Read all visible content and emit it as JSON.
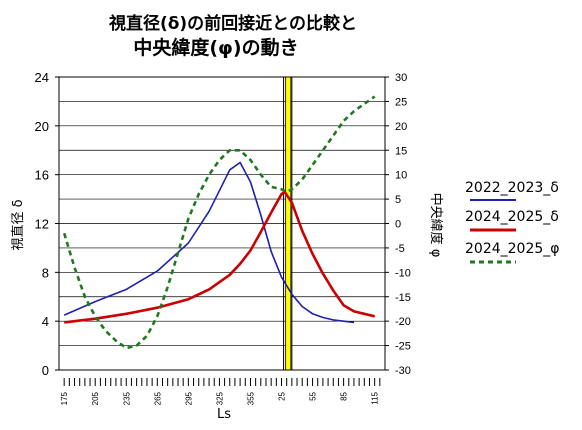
{
  "chart_data": {
    "type": "line",
    "title_line1": "視直径(δ)の前回接近との比較と",
    "title_line2": "中央緯度(φ)の動き",
    "xlabel": "Ls",
    "ylabel_left": "視直径 δ",
    "ylabel_right": "中央緯度 φ",
    "x_ticks": [
      "175",
      "205",
      "235",
      "265",
      "295",
      "325",
      "355",
      "25",
      "55",
      "85",
      "115"
    ],
    "x_unwrapped_range": [
      170,
      485
    ],
    "left_axis": {
      "ylim": [
        0,
        24
      ],
      "ticks": [
        "0",
        "4",
        "8",
        "12",
        "16",
        "20",
        "24"
      ]
    },
    "right_axis": {
      "ylim": [
        -30,
        30
      ],
      "ticks": [
        "30",
        "25",
        "20",
        "15",
        "10",
        "5",
        "0",
        "-5",
        "-10",
        "-15",
        "-20",
        "-25",
        "-30"
      ]
    },
    "grid": true,
    "highlight_band": {
      "x_range": [
        29,
        34
      ],
      "color": "#ffff00"
    },
    "markers": [
      27,
      35
    ],
    "series": [
      {
        "name": "2022_2023_δ",
        "axis": "left",
        "color": "#1f1fb0",
        "style": "solid",
        "x": [
          175,
          205,
          235,
          265,
          295,
          315,
          335,
          345,
          355,
          5,
          15,
          25,
          35,
          45,
          55,
          65,
          75,
          85,
          95
        ],
        "y": [
          4.5,
          5.6,
          6.6,
          8.1,
          10.4,
          13.0,
          16.4,
          17.0,
          15.4,
          12.7,
          9.7,
          7.6,
          6.2,
          5.2,
          4.6,
          4.3,
          4.1,
          4.0,
          3.9
        ]
      },
      {
        "name": "2024_2025_δ",
        "axis": "left",
        "color": "#cc0000",
        "style": "solid",
        "x": [
          175,
          205,
          235,
          265,
          295,
          315,
          335,
          345,
          355,
          5,
          15,
          25,
          28,
          35,
          45,
          55,
          65,
          75,
          85,
          95,
          115
        ],
        "y": [
          3.9,
          4.2,
          4.6,
          5.1,
          5.8,
          6.6,
          7.8,
          8.7,
          9.8,
          11.3,
          12.9,
          14.4,
          14.6,
          13.7,
          11.4,
          9.5,
          7.9,
          6.5,
          5.3,
          4.8,
          4.4
        ]
      },
      {
        "name": "2024_2025_φ",
        "axis": "right",
        "color": "#1f7a1f",
        "style": "dashed",
        "x": [
          175,
          185,
          195,
          205,
          215,
          225,
          235,
          245,
          255,
          265,
          275,
          285,
          295,
          305,
          315,
          325,
          335,
          345,
          355,
          5,
          15,
          25,
          30,
          35,
          45,
          55,
          65,
          75,
          85,
          95,
          105,
          115
        ],
        "y": [
          -2,
          -9,
          -15,
          -19,
          -22,
          -24,
          -25.5,
          -25,
          -23,
          -19,
          -13,
          -6,
          1,
          6,
          10,
          13,
          15,
          15,
          13,
          10,
          7.5,
          7,
          6.5,
          7,
          9,
          12,
          15,
          18,
          21,
          23,
          24.5,
          26
        ]
      }
    ]
  }
}
